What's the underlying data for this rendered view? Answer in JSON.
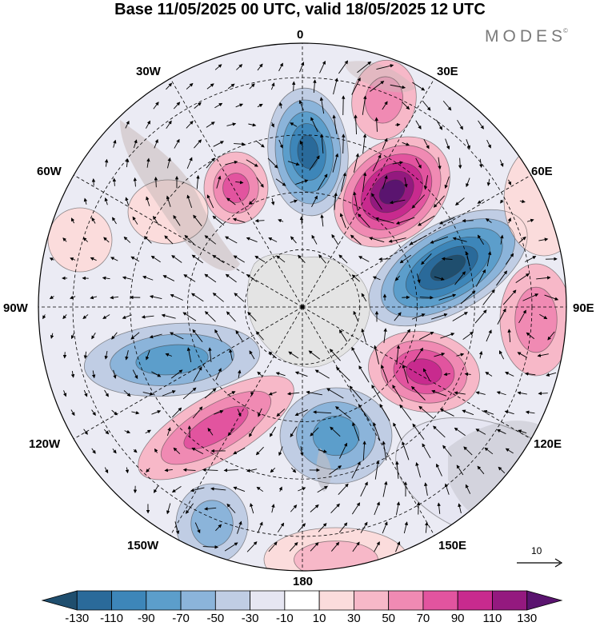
{
  "title": "Base 11/05/2025 00 UTC, valid 18/05/2025 12 UTC",
  "brand": {
    "name": "MODES",
    "mark": "©"
  },
  "longitude_labels": [
    "0",
    "30E",
    "60E",
    "90E",
    "120E",
    "150E",
    "180",
    "150W",
    "120W",
    "90W",
    "60W",
    "30W"
  ],
  "reference_vector": {
    "value": "10"
  },
  "colorbar": {
    "colors": [
      "#1f4e6e",
      "#2a6a9a",
      "#3d86b9",
      "#5c9ecb",
      "#8bb4da",
      "#c0cde4",
      "#e6e6f2",
      "#ffffff",
      "#fbdcdc",
      "#f7b8c8",
      "#f08ab3",
      "#e2549f",
      "#c82a8e",
      "#94197f",
      "#5a146f"
    ],
    "tick_labels": [
      "-130",
      "-110",
      "-90",
      "-70",
      "-50",
      "-30",
      "-10",
      "10",
      "30",
      "50",
      "70",
      "90",
      "110",
      "130"
    ]
  },
  "map_colors": {
    "land": "#cfcfcf",
    "antarctica": "#e8e8e8",
    "grid": "#000000",
    "positive_strong": "#5a146f",
    "negative_strong": "#1f4e6e"
  }
}
